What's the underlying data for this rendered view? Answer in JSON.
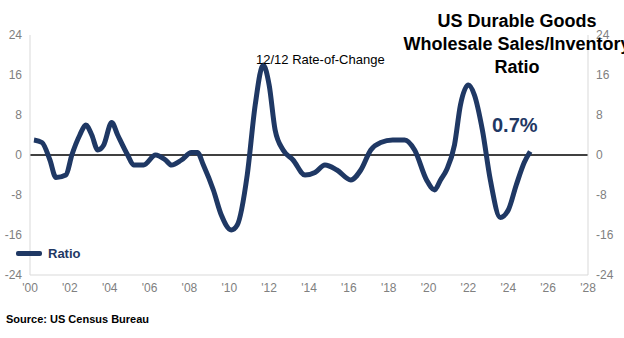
{
  "chart_data": {
    "type": "line",
    "title": "US Durable Goods Wholesale Sales/Inventory Ratio",
    "subtitle": "12/12 Rate-of-Change",
    "annotation": "0.7%",
    "source": "Source: US Census Bureau",
    "x": [
      2000.2,
      2000.6,
      2001.0,
      2001.3,
      2001.8,
      2002.1,
      2002.5,
      2002.8,
      2003.1,
      2003.4,
      2003.7,
      2004.1,
      2004.4,
      2004.9,
      2005.2,
      2005.7,
      2006.3,
      2006.8,
      2007.1,
      2007.6,
      2008.1,
      2008.4,
      2008.7,
      2009.2,
      2009.6,
      2010.1,
      2010.4,
      2010.9,
      2011.3,
      2011.7,
      2012.0,
      2012.3,
      2012.7,
      2013.2,
      2013.8,
      2014.3,
      2014.8,
      2015.4,
      2016.1,
      2016.6,
      2017.1,
      2017.6,
      2018.2,
      2018.8,
      2019.3,
      2019.9,
      2020.3,
      2020.6,
      2020.9,
      2021.3,
      2021.6,
      2022.0,
      2022.3,
      2022.7,
      2023.1,
      2023.6,
      2024.0,
      2024.4,
      2024.8,
      2025.1
    ],
    "series": [
      {
        "name": "Ratio",
        "color": "#1f3864",
        "values": [
          3,
          2.5,
          -1,
          -4.5,
          -4,
          0,
          4,
          6,
          4,
          1,
          2,
          6.5,
          4,
          0,
          -2,
          -2,
          0,
          -1,
          -2,
          -1,
          0.5,
          0.5,
          -2,
          -7,
          -12,
          -15,
          -14,
          -4,
          10,
          18,
          14,
          5,
          1,
          -1,
          -4,
          -3.5,
          -2,
          -3,
          -5,
          -3,
          1,
          2.5,
          3,
          3,
          1,
          -5,
          -7,
          -5,
          -3,
          2,
          10,
          14,
          12,
          5,
          -5,
          -12.5,
          -11,
          -6,
          -1.5,
          0.7
        ]
      }
    ],
    "xlim": [
      2000,
      2028
    ],
    "xticks": [
      {
        "value": 2000,
        "label": "'00"
      },
      {
        "value": 2002,
        "label": "'02"
      },
      {
        "value": 2004,
        "label": "'04"
      },
      {
        "value": 2006,
        "label": "'06"
      },
      {
        "value": 2008,
        "label": "'08"
      },
      {
        "value": 2010,
        "label": "'10"
      },
      {
        "value": 2012,
        "label": "'12"
      },
      {
        "value": 2014,
        "label": "'14"
      },
      {
        "value": 2016,
        "label": "'16"
      },
      {
        "value": 2018,
        "label": "'18"
      },
      {
        "value": 2020,
        "label": "'20"
      },
      {
        "value": 2022,
        "label": "'22"
      },
      {
        "value": 2024,
        "label": "'24"
      },
      {
        "value": 2026,
        "label": "'26"
      },
      {
        "value": 2028,
        "label": "'28"
      }
    ],
    "ylim": [
      -24,
      24
    ],
    "yticks": [
      -24,
      -16,
      -8,
      0,
      8,
      16,
      24
    ],
    "y2lim": [
      -24,
      24
    ],
    "y2ticks": [
      -24,
      -16,
      -8,
      0,
      8,
      16,
      24
    ],
    "grid": false,
    "legend": "lower left"
  }
}
